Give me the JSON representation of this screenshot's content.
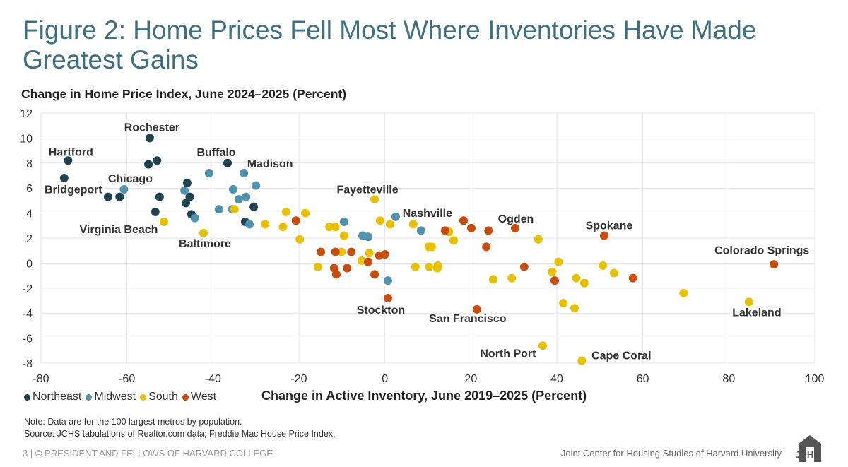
{
  "title": "Figure 2: Home Prices Fell Most Where Inventories Have Made Greatest Gains",
  "footer": {
    "note": "Note: Data are for the 100 largest metros by population.",
    "source": "Source: JCHS tabulations of Realtor.com data; Freddie Mac House Price Index.",
    "left": "3 | © PRESIDENT AND FELLOWS OF HARVARD COLLEGE",
    "right": "Joint Center for Housing Studies of Harvard University",
    "logo": "JCHS"
  },
  "chart_data": {
    "type": "scatter",
    "ylabel": "Change in Home Price Index, June 2024–2025 (Percent)",
    "xlabel": "Change in Active Inventory, June 2019–2025 (Percent)",
    "xlim": [
      -80,
      100
    ],
    "ylim": [
      -8,
      12
    ],
    "xticks": [
      -80,
      -60,
      -40,
      -20,
      0,
      20,
      40,
      60,
      80,
      100
    ],
    "yticks": [
      -8,
      -6,
      -4,
      -2,
      0,
      2,
      4,
      6,
      8,
      10,
      12
    ],
    "grid": true,
    "legend_placement": "bottom-left",
    "series": [
      {
        "name": "Northeast",
        "color": "#1f4250",
        "points": [
          {
            "x": -73.7,
            "y": 8.2,
            "label": "Hartford"
          },
          {
            "x": -74.6,
            "y": 6.8,
            "label": "Bridgeport"
          },
          {
            "x": -54.7,
            "y": 10.0,
            "label": "Rochester"
          },
          {
            "x": -55.0,
            "y": 7.9
          },
          {
            "x": -53.0,
            "y": 8.2
          },
          {
            "x": -64.4,
            "y": 5.3
          },
          {
            "x": -61.7,
            "y": 5.3
          },
          {
            "x": -52.4,
            "y": 5.3
          },
          {
            "x": -53.4,
            "y": 4.1
          },
          {
            "x": -46.0,
            "y": 6.4
          },
          {
            "x": -45.4,
            "y": 5.3
          },
          {
            "x": -46.3,
            "y": 4.8
          },
          {
            "x": -45.0,
            "y": 3.9
          },
          {
            "x": -36.6,
            "y": 8.0,
            "label": "Buffalo"
          },
          {
            "x": -30.5,
            "y": 4.5
          },
          {
            "x": -32.5,
            "y": 3.3
          }
        ]
      },
      {
        "name": "Midwest",
        "color": "#5193ad",
        "points": [
          {
            "x": -60.7,
            "y": 5.9,
            "label": "Chicago"
          },
          {
            "x": -46.6,
            "y": 5.8
          },
          {
            "x": -44.2,
            "y": 3.6
          },
          {
            "x": -40.9,
            "y": 7.2
          },
          {
            "x": -38.6,
            "y": 4.3
          },
          {
            "x": -35.3,
            "y": 5.9
          },
          {
            "x": -35.5,
            "y": 4.3
          },
          {
            "x": -32.8,
            "y": 7.2,
            "label": "Madison"
          },
          {
            "x": -34.0,
            "y": 5.1
          },
          {
            "x": -32.3,
            "y": 5.3
          },
          {
            "x": -30.0,
            "y": 6.2
          },
          {
            "x": -31.5,
            "y": 3.1
          },
          {
            "x": -9.5,
            "y": 3.3
          },
          {
            "x": -5.2,
            "y": 2.2
          },
          {
            "x": -3.9,
            "y": 2.1
          },
          {
            "x": 0.7,
            "y": -1.4
          },
          {
            "x": 2.5,
            "y": 3.7,
            "label": "Nashville"
          },
          {
            "x": 8.4,
            "y": 2.6
          }
        ]
      },
      {
        "name": "South",
        "color": "#e9c000",
        "points": [
          {
            "x": -51.4,
            "y": 3.3,
            "label": "Virginia Beach"
          },
          {
            "x": -42.2,
            "y": 2.4,
            "label": "Baltimore"
          },
          {
            "x": -35.0,
            "y": 4.3
          },
          {
            "x": -27.9,
            "y": 3.1
          },
          {
            "x": -23.0,
            "y": 4.1
          },
          {
            "x": -23.7,
            "y": 2.9
          },
          {
            "x": -18.5,
            "y": 4.0
          },
          {
            "x": -19.8,
            "y": 1.9
          },
          {
            "x": -12.9,
            "y": 2.9
          },
          {
            "x": -11.5,
            "y": 2.9
          },
          {
            "x": -9.5,
            "y": 2.2
          },
          {
            "x": -15.6,
            "y": -0.3
          },
          {
            "x": -10.1,
            "y": 0.9
          },
          {
            "x": -5.4,
            "y": 0.2
          },
          {
            "x": -3.6,
            "y": 0.8
          },
          {
            "x": -2.4,
            "y": 5.1,
            "label": "Fayetteville"
          },
          {
            "x": -1.1,
            "y": 3.4
          },
          {
            "x": 1.2,
            "y": 3.1
          },
          {
            "x": 6.6,
            "y": 3.1
          },
          {
            "x": 7.1,
            "y": -0.3
          },
          {
            "x": 10.2,
            "y": 1.3
          },
          {
            "x": 10.9,
            "y": 1.3
          },
          {
            "x": 10.3,
            "y": -0.3
          },
          {
            "x": 12.3,
            "y": -0.2
          },
          {
            "x": 12.2,
            "y": -0.4
          },
          {
            "x": 14.9,
            "y": 2.5
          },
          {
            "x": 16.0,
            "y": 1.8
          },
          {
            "x": 25.2,
            "y": -1.3
          },
          {
            "x": 29.5,
            "y": -1.2
          },
          {
            "x": 35.7,
            "y": 1.9
          },
          {
            "x": 40.4,
            "y": 0.1
          },
          {
            "x": 38.9,
            "y": -0.7
          },
          {
            "x": 41.5,
            "y": -3.2
          },
          {
            "x": 44.1,
            "y": -3.6
          },
          {
            "x": 44.5,
            "y": -1.2
          },
          {
            "x": 46.4,
            "y": -1.6
          },
          {
            "x": 50.7,
            "y": -0.2
          },
          {
            "x": 53.3,
            "y": -0.8
          },
          {
            "x": 69.5,
            "y": -2.4
          },
          {
            "x": 36.7,
            "y": -6.6,
            "label": "North Port"
          },
          {
            "x": 45.8,
            "y": -7.8,
            "label": "Cape Coral"
          },
          {
            "x": 84.7,
            "y": -3.1,
            "label": "Lakeland"
          }
        ]
      },
      {
        "name": "West",
        "color": "#c84d0c",
        "points": [
          {
            "x": -20.7,
            "y": 3.4
          },
          {
            "x": -14.9,
            "y": 0.9
          },
          {
            "x": -11.5,
            "y": 0.9
          },
          {
            "x": -7.8,
            "y": 0.9
          },
          {
            "x": -11.8,
            "y": -0.4
          },
          {
            "x": -11.3,
            "y": -0.9
          },
          {
            "x": -8.8,
            "y": -0.4
          },
          {
            "x": -3.9,
            "y": 0.1
          },
          {
            "x": -2.4,
            "y": -0.9
          },
          {
            "x": -1.3,
            "y": 0.6
          },
          {
            "x": 0.0,
            "y": 0.7
          },
          {
            "x": 0.7,
            "y": -2.8,
            "label": "Stockton"
          },
          {
            "x": 18.3,
            "y": 3.4
          },
          {
            "x": 20.1,
            "y": 2.8
          },
          {
            "x": 14.0,
            "y": 2.6
          },
          {
            "x": 24.1,
            "y": 2.6
          },
          {
            "x": 23.6,
            "y": 1.3
          },
          {
            "x": 30.3,
            "y": 2.8,
            "label": "Ogden"
          },
          {
            "x": 32.4,
            "y": -0.3
          },
          {
            "x": 39.5,
            "y": -1.4
          },
          {
            "x": 51.0,
            "y": 2.2,
            "label": "Spokane"
          },
          {
            "x": 57.7,
            "y": -1.2
          },
          {
            "x": 90.5,
            "y": -0.1,
            "label": "Colorado Springs"
          },
          {
            "x": 21.4,
            "y": -3.7,
            "label": "San Francisco"
          }
        ]
      }
    ]
  }
}
